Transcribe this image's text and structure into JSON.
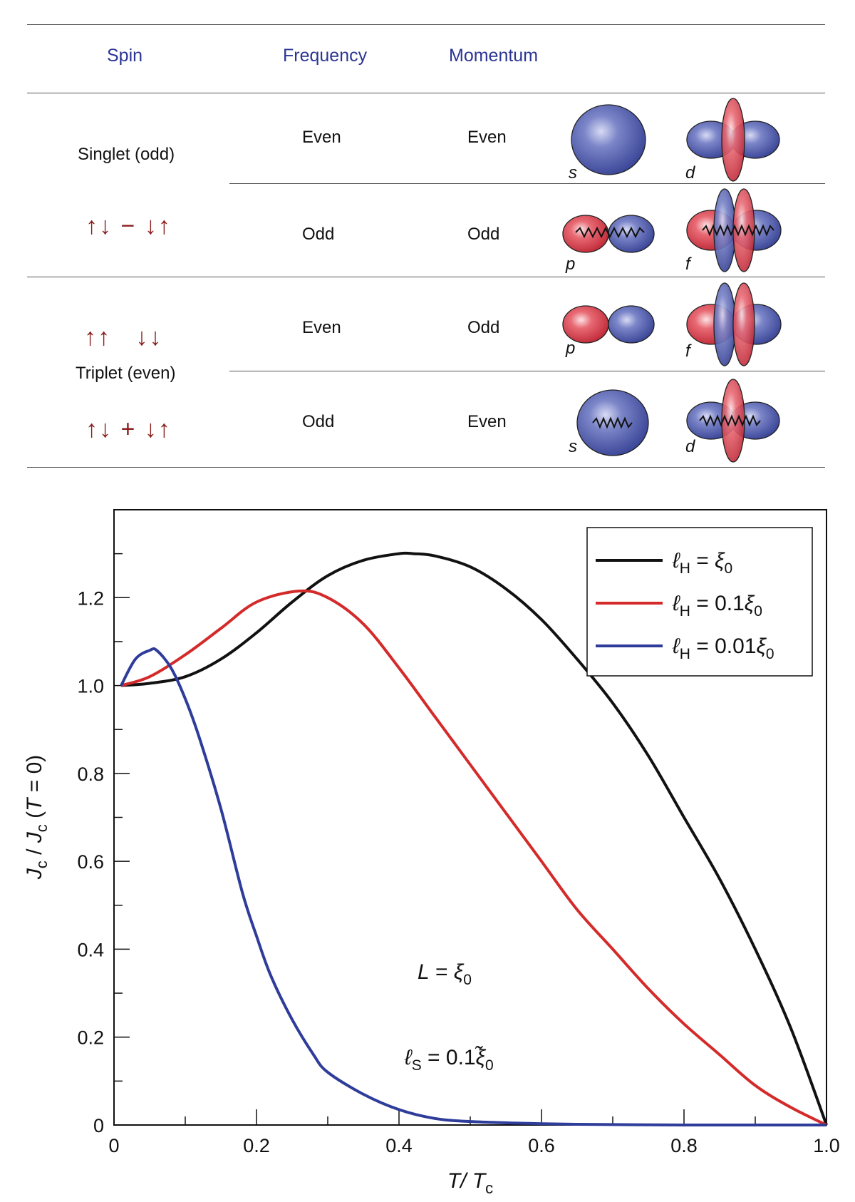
{
  "table": {
    "headers": {
      "spin": "Spin",
      "frequency": "Frequency",
      "momentum": "Momentum"
    },
    "groups": [
      {
        "label": "Singlet (odd)",
        "rows": [
          {
            "spin": "",
            "frequency": "Even",
            "momentum": "Even",
            "orbital_left": "s",
            "orbital_right": "d"
          },
          {
            "spin": "↑↓ − ↓↑",
            "frequency": "Odd",
            "momentum": "Odd",
            "orbital_left": "p",
            "orbital_right": "f"
          }
        ]
      },
      {
        "label": "Triplet (even)",
        "rows": [
          {
            "spin": "↑↑   ↓↓",
            "frequency": "Even",
            "momentum": "Odd",
            "orbital_left": "p",
            "orbital_right": "f"
          },
          {
            "spin": "↑↓ + ↓↑",
            "frequency": "Odd",
            "momentum": "Even",
            "orbital_left": "s",
            "orbital_right": "d"
          }
        ]
      }
    ],
    "colors": {
      "header": "#2b3594",
      "spin_arrows": "#8b1f1f",
      "lobe_blue": "#4a55a8",
      "lobe_red": "#d43a48"
    }
  },
  "chart_data": {
    "type": "line",
    "xlabel": "T / Tc",
    "ylabel": "Jc / Jc (T = 0)",
    "xlim": [
      0,
      1.0
    ],
    "ylim": [
      0,
      1.4
    ],
    "x_ticks": [
      "0",
      "0.2",
      "0.4",
      "0.6",
      "0.8",
      "1.0"
    ],
    "y_ticks": [
      "0",
      "0.2",
      "0.4",
      "0.6",
      "0.8",
      "1.0",
      "1.2"
    ],
    "legend_position": "top-right",
    "annotations": [
      "L = ξ0",
      "ℓS = 0.1ξ̃0"
    ],
    "series": [
      {
        "name": "ℓH = ξ0",
        "color": "#111111",
        "x": [
          0.01,
          0.05,
          0.1,
          0.15,
          0.2,
          0.25,
          0.3,
          0.35,
          0.4,
          0.42,
          0.45,
          0.5,
          0.55,
          0.6,
          0.65,
          0.7,
          0.75,
          0.8,
          0.85,
          0.9,
          0.95,
          1.0
        ],
        "y": [
          1.0,
          1.005,
          1.02,
          1.06,
          1.12,
          1.19,
          1.25,
          1.285,
          1.3,
          1.3,
          1.295,
          1.27,
          1.22,
          1.15,
          1.06,
          0.96,
          0.84,
          0.7,
          0.56,
          0.4,
          0.22,
          0.0
        ]
      },
      {
        "name": "ℓH = 0.1ξ0",
        "color": "#d42a2a",
        "x": [
          0.01,
          0.05,
          0.1,
          0.15,
          0.2,
          0.26,
          0.3,
          0.35,
          0.4,
          0.45,
          0.5,
          0.55,
          0.6,
          0.65,
          0.7,
          0.75,
          0.8,
          0.85,
          0.9,
          0.95,
          1.0
        ],
        "y": [
          1.0,
          1.02,
          1.07,
          1.13,
          1.19,
          1.215,
          1.2,
          1.14,
          1.04,
          0.93,
          0.82,
          0.71,
          0.6,
          0.49,
          0.4,
          0.31,
          0.23,
          0.16,
          0.09,
          0.04,
          0.0
        ]
      },
      {
        "name": "ℓH = 0.01ξ0",
        "color": "#2e3c9a",
        "x": [
          0.01,
          0.03,
          0.05,
          0.06,
          0.08,
          0.1,
          0.12,
          0.15,
          0.18,
          0.2,
          0.22,
          0.25,
          0.28,
          0.3,
          0.35,
          0.4,
          0.45,
          0.5,
          0.6,
          0.7,
          0.8,
          1.0
        ],
        "y": [
          1.0,
          1.06,
          1.08,
          1.08,
          1.04,
          0.97,
          0.88,
          0.72,
          0.53,
          0.43,
          0.34,
          0.24,
          0.16,
          0.12,
          0.07,
          0.035,
          0.015,
          0.008,
          0.003,
          0.001,
          0.0,
          0.0
        ]
      }
    ]
  }
}
